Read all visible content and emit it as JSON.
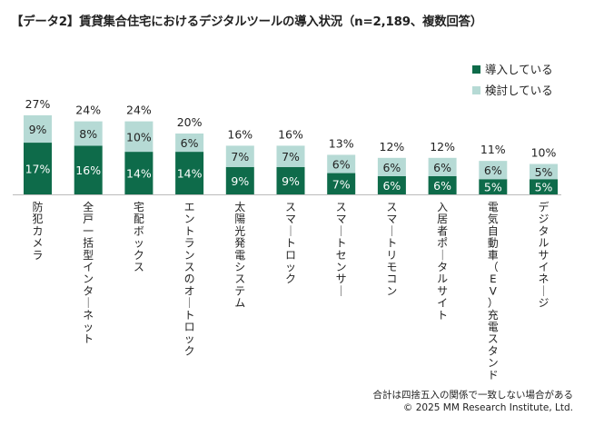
{
  "header": {
    "title": "【データ2】賃貸集合住宅におけるデジタルツールの導入状況（n=2,189、複数回答）"
  },
  "footer": {
    "note": "合計は四捨五入の関係で一致しない場合がある",
    "copyright": "© 2025 MM Research Institute, Ltd."
  },
  "colors": {
    "introduced": "#0e6b4a",
    "considering": "#b6dad5",
    "introduced_label": "#ffffff",
    "considering_label": "#222222"
  },
  "chart_data": {
    "type": "bar",
    "stacked": true,
    "unit": "%",
    "categories": [
      "防犯カメラ",
      "全戸一括型インターネット",
      "宅配ボックス",
      "エントランスのオートロック",
      "太陽光発電システム",
      "スマートロック",
      "スマートセンサー",
      "スマートリモコン",
      "入居者ポータルサイト",
      "電気自動車（EV）充電スタンド",
      "デジタルサイネージ"
    ],
    "series": [
      {
        "name": "導入している",
        "values": [
          17,
          16,
          14,
          14,
          9,
          9,
          7,
          6,
          6,
          5,
          5
        ]
      },
      {
        "name": "検討している",
        "values": [
          9,
          8,
          10,
          6,
          7,
          7,
          6,
          6,
          6,
          6,
          5
        ]
      }
    ],
    "totals": [
      27,
      24,
      24,
      20,
      16,
      16,
      13,
      12,
      12,
      11,
      10
    ],
    "legend_position": "top-right",
    "grid": false,
    "ylim": [
      0,
      30
    ]
  }
}
